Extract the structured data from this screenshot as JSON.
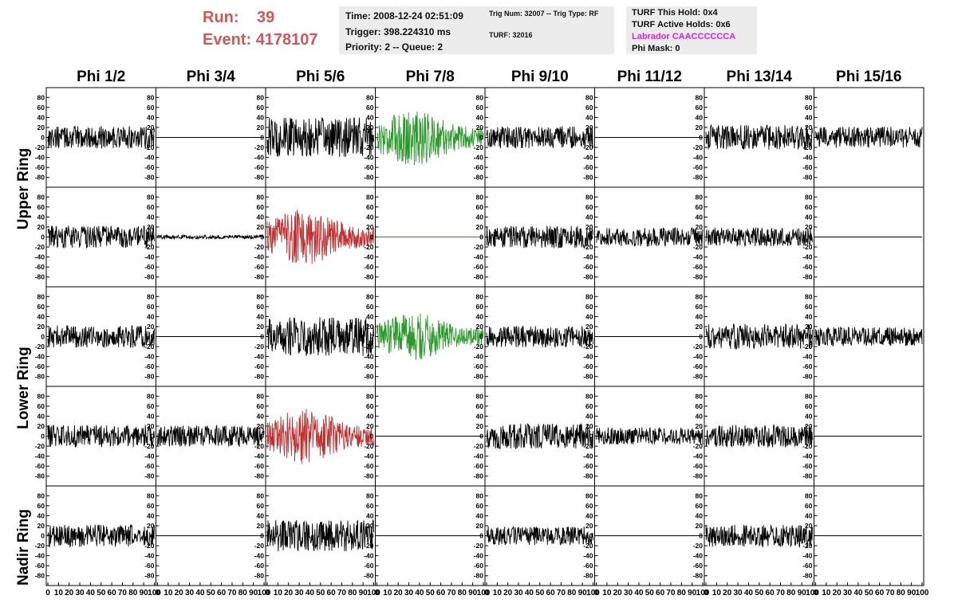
{
  "header": {
    "run_label": "Run:",
    "run_value": "39",
    "event_label": "Event:",
    "event_value": "4178107",
    "time": "Time: 2008-12-24 02:51:09",
    "trigger": "Trigger: 398.224310 ms",
    "priority_queue": "Priority: 2 -- Queue: 2",
    "trig_num_type": "Trig Num: 32007 -- Trig Type: RF",
    "turf": "TURF: 32016",
    "turf_this_hold": "TURF This Hold: 0x4",
    "turf_active_holds": "TURF Active Holds: 0x6",
    "labrador": "Labrador CAACCCCCCA",
    "phi_mask": "Phi Mask: 0",
    "run_color": "#d25757",
    "labrador_color": "#e01ee0"
  },
  "phi_headers": [
    "Phi 1/2",
    "Phi 3/4",
    "Phi 5/6",
    "Phi 7/8",
    "Phi 9/10",
    "Phi 11/12",
    "Phi 13/14",
    "Phi 15/16"
  ],
  "ring_labels": [
    "Upper Ring",
    "Lower Ring",
    "Nadir Ring"
  ],
  "chart_data": {
    "type": "line",
    "description_rows": 5,
    "description_cols": 8,
    "x_range": [
      0,
      100
    ],
    "y_range": [
      -90,
      90
    ],
    "y_ticks": [
      -80,
      -60,
      -40,
      -20,
      0,
      20,
      40,
      60,
      80
    ],
    "x_tick_labels": [
      "0",
      "10",
      "20",
      "30",
      "40",
      "50",
      "60",
      "70",
      "80",
      "90",
      "100"
    ],
    "colors": {
      "normal": "#000000",
      "triggered": "#2a9a2a",
      "red": "#c03030"
    },
    "rows": [
      {
        "traces": [
          {
            "amp": 18,
            "style": "normal"
          },
          {
            "amp": 0,
            "style": "normal"
          },
          {
            "amp": 32,
            "style": "normal"
          },
          {
            "amp": 45,
            "style": "triggered",
            "envelope": true
          },
          {
            "amp": 18,
            "style": "normal"
          },
          {
            "amp": 0,
            "style": "normal"
          },
          {
            "amp": 20,
            "style": "normal"
          },
          {
            "amp": 17,
            "style": "normal"
          }
        ]
      },
      {
        "traces": [
          {
            "amp": 18,
            "style": "normal"
          },
          {
            "amp": 3,
            "style": "normal"
          },
          {
            "amp": 45,
            "style": "red",
            "envelope": true
          },
          {
            "amp": 0,
            "style": "triggered"
          },
          {
            "amp": 18,
            "style": "normal"
          },
          {
            "amp": 15,
            "style": "normal"
          },
          {
            "amp": 15,
            "style": "normal"
          },
          {
            "amp": 0,
            "style": "normal"
          }
        ]
      },
      {
        "traces": [
          {
            "amp": 18,
            "style": "normal"
          },
          {
            "amp": 0,
            "style": "normal"
          },
          {
            "amp": 32,
            "style": "normal"
          },
          {
            "amp": 38,
            "style": "triggered",
            "envelope": true
          },
          {
            "amp": 17,
            "style": "normal"
          },
          {
            "amp": 0,
            "style": "normal"
          },
          {
            "amp": 20,
            "style": "normal"
          },
          {
            "amp": 15,
            "style": "normal"
          }
        ]
      },
      {
        "traces": [
          {
            "amp": 18,
            "style": "normal"
          },
          {
            "amp": 17,
            "style": "normal"
          },
          {
            "amp": 45,
            "style": "red",
            "envelope": true
          },
          {
            "amp": 0,
            "style": "normal"
          },
          {
            "amp": 20,
            "style": "normal"
          },
          {
            "amp": 14,
            "style": "normal"
          },
          {
            "amp": 18,
            "style": "normal"
          },
          {
            "amp": 0,
            "style": "normal"
          }
        ]
      },
      {
        "traces": [
          {
            "amp": 18,
            "style": "normal"
          },
          {
            "amp": 0,
            "style": "normal"
          },
          {
            "amp": 25,
            "style": "normal"
          },
          {
            "amp": 0,
            "style": "normal"
          },
          {
            "amp": 15,
            "style": "normal"
          },
          {
            "amp": 0,
            "style": "normal"
          },
          {
            "amp": 18,
            "style": "normal"
          },
          {
            "amp": 0,
            "style": "normal"
          }
        ]
      }
    ]
  }
}
